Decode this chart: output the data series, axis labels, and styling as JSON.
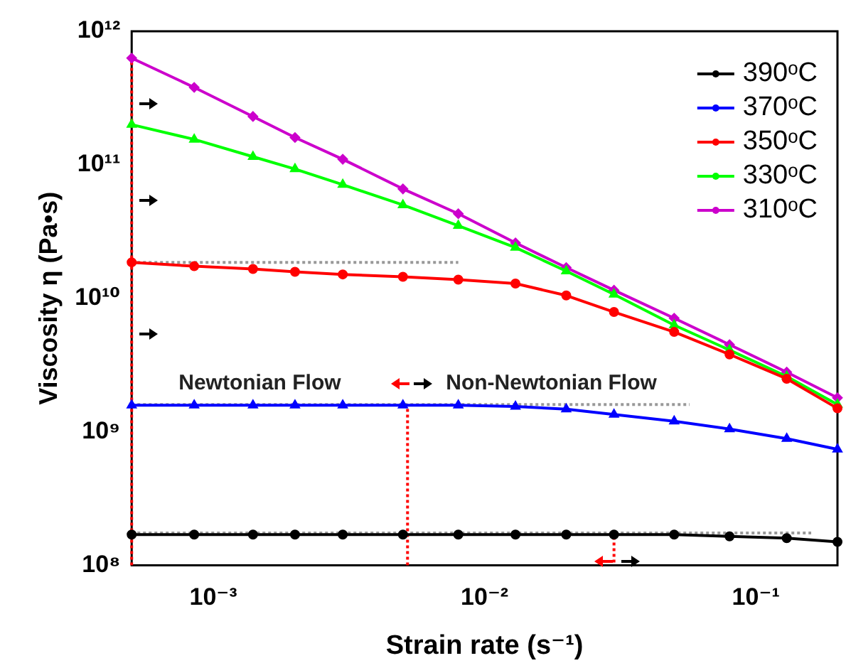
{
  "chart_data": {
    "type": "line",
    "xlabel": "Strain rate (s⁻¹)",
    "ylabel": "Viscosity η (Pa•s)",
    "log": "xy",
    "grid": false,
    "legend": "top right",
    "xlim": [
      0.0005,
      0.2
    ],
    "xticks": [
      {
        "value": 0.001,
        "label": "10⁻³"
      },
      {
        "value": 0.01,
        "label": "10⁻²"
      },
      {
        "value": 0.1,
        "label": "10⁻¹"
      }
    ],
    "ylim": [
      100000000.0,
      1000000000000.0
    ],
    "yticks": [
      {
        "value": 100000000.0,
        "label": "10⁸"
      },
      {
        "value": 1000000000.0,
        "label": "10⁹"
      },
      {
        "value": 10000000000.0,
        "label": "10¹⁰"
      },
      {
        "value": 100000000000.0,
        "label": "10¹¹"
      },
      {
        "value": 1000000000000.0,
        "label": "10¹²"
      }
    ],
    "x": [
      0.0005,
      0.00085,
      0.0014,
      0.002,
      0.003,
      0.005,
      0.008,
      0.013,
      0.02,
      0.03,
      0.05,
      0.08,
      0.13,
      0.2
    ],
    "series": [
      {
        "name": "390ᵒC",
        "color": "#000000",
        "marker": "circle",
        "values": [
          170000000.0,
          170000000.0,
          170000000.0,
          170000000.0,
          170000000.0,
          170000000.0,
          170000000.0,
          170000000.0,
          170000000.0,
          170000000.0,
          170000000.0,
          165000000.0,
          160000000.0,
          150000000.0
        ]
      },
      {
        "name": "370ᵒC",
        "color": "#0000ff",
        "marker": "triangle",
        "values": [
          1580000000.0,
          1580000000.0,
          1580000000.0,
          1580000000.0,
          1580000000.0,
          1580000000.0,
          1580000000.0,
          1550000000.0,
          1480000000.0,
          1350000000.0,
          1200000000.0,
          1050000000.0,
          890000000.0,
          740000000.0
        ]
      },
      {
        "name": "350ᵒC",
        "color": "#ff0000",
        "marker": "circle",
        "values": [
          18600000000.0,
          17400000000.0,
          16600000000.0,
          15800000000.0,
          15100000000.0,
          14500000000.0,
          13800000000.0,
          12900000000.0,
          10500000000.0,
          7900000000.0,
          5600000000.0,
          3800000000.0,
          2500000000.0,
          1500000000.0
        ]
      },
      {
        "name": "330ᵒC",
        "color": "#00ff00",
        "marker": "triangle",
        "values": [
          200000000000.0,
          155000000000.0,
          115000000000.0,
          93000000000.0,
          71000000000.0,
          50000000000.0,
          35000000000.0,
          24000000000.0,
          16000000000.0,
          10700000000.0,
          6300000000.0,
          4100000000.0,
          2600000000.0,
          1600000000.0
        ]
      },
      {
        "name": "310ᵒC",
        "color": "#cc00cc",
        "marker": "diamond",
        "values": [
          630000000000.0,
          380000000000.0,
          230000000000.0,
          160000000000.0,
          110000000000.0,
          66000000000.0,
          43000000000.0,
          26000000000.0,
          17000000000.0,
          11500000000.0,
          7100000000.0,
          4500000000.0,
          2800000000.0,
          1800000000.0
        ]
      },
      {
        "color": "#999999",
        "marker": "none",
        "line_style": "dotted",
        "x": [
          0.0005,
          0.008
        ],
        "values": [
          18600000000.0,
          18600000000.0
        ]
      },
      {
        "color": "#999999",
        "marker": "none",
        "line_style": "dotted",
        "x": [
          0.0005,
          0.057
        ],
        "values": [
          1600000000.0,
          1600000000.0
        ]
      },
      {
        "color": "#999999",
        "marker": "none",
        "line_style": "dotted",
        "x": [
          0.0005,
          0.16
        ],
        "values": [
          175000000.0,
          175000000.0
        ]
      },
      {
        "color": "#ff0000",
        "marker": "none",
        "line_style": "dotted",
        "x": [
          0.0005,
          0.0005
        ],
        "values": [
          100000000.0,
          630000000000.0
        ]
      },
      {
        "color": "#ff0000",
        "marker": "none",
        "line_style": "dotted",
        "x": [
          0.0052,
          0.0052
        ],
        "values": [
          100000000.0,
          1580000000.0
        ]
      },
      {
        "color": "#ff0000",
        "marker": "none",
        "line_style": "dotted",
        "x": [
          0.03,
          0.03
        ],
        "values": [
          105000000.0,
          180000000.0
        ]
      }
    ],
    "annotations": [
      "Newtonian Flow",
      "Non-Newtonian Flow"
    ]
  }
}
